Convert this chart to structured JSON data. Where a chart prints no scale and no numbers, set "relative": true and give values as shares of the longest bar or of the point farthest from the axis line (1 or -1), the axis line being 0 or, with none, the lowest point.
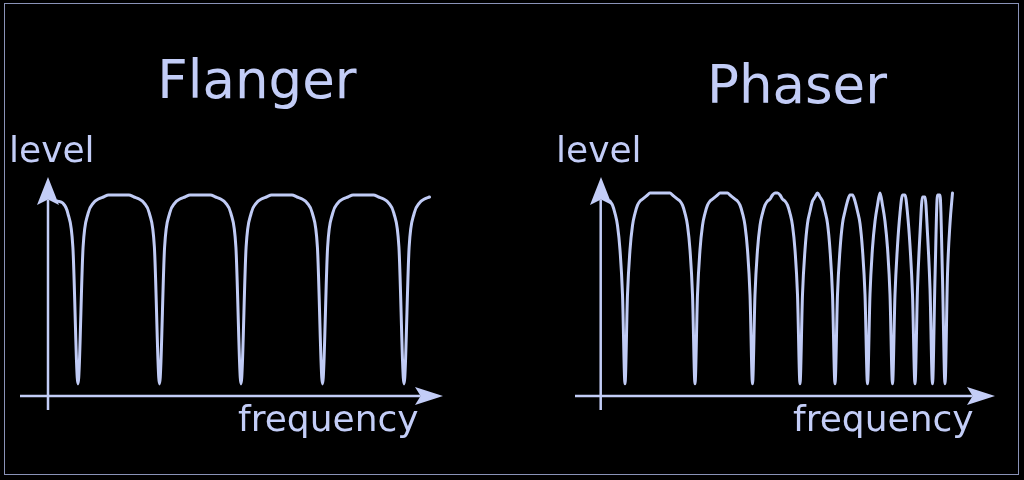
{
  "chart_data": [
    {
      "type": "line",
      "title": "Flanger",
      "xlabel": "frequency",
      "ylabel": "level",
      "relative": true,
      "color": "#c0cbf5",
      "categories": [
        null,
        null,
        null,
        null,
        null,
        null,
        null,
        null,
        null,
        null,
        null,
        null,
        null,
        null,
        null,
        null,
        null,
        null,
        null,
        null,
        null,
        null,
        null,
        null,
        null,
        null,
        null,
        null,
        null,
        null,
        null,
        null,
        null,
        null,
        null,
        null,
        null,
        null,
        null,
        null,
        null,
        null,
        null,
        null,
        null,
        null,
        null,
        null,
        null,
        null,
        null,
        null,
        null,
        null,
        null,
        null,
        null,
        null,
        null,
        null,
        null,
        null,
        null,
        null,
        null,
        null,
        null,
        null,
        null,
        null,
        null,
        null,
        null,
        null
      ],
      "values": [
        0.97,
        0.96,
        0.91,
        0.74,
        0.06,
        0.74,
        0.91,
        0.96,
        0.98,
        0.99,
        1,
        1,
        1,
        1,
        1,
        0.99,
        0.98,
        0.96,
        0.91,
        0.74,
        0.06,
        0.74,
        0.91,
        0.96,
        0.98,
        0.99,
        1,
        1,
        1,
        1,
        1,
        0.99,
        0.98,
        0.96,
        0.91,
        0.74,
        0.06,
        0.74,
        0.91,
        0.96,
        0.98,
        0.99,
        1,
        1,
        1,
        1,
        1,
        0.99,
        0.98,
        0.96,
        0.91,
        0.74,
        0.06,
        0.74,
        0.91,
        0.96,
        0.98,
        0.99,
        1,
        1,
        1,
        1,
        1,
        0.99,
        0.98,
        0.96,
        0.91,
        0.74,
        0.06,
        0.74,
        0.91,
        0.96,
        0.98,
        0.99
      ]
    },
    {
      "type": "line",
      "title": "Phaser",
      "xlabel": "frequency",
      "ylabel": "level",
      "relative": true,
      "color": "#c0cbf5",
      "categories": [
        null,
        null,
        null,
        null,
        null,
        null,
        null,
        null,
        null,
        null,
        null,
        null,
        null,
        null,
        null,
        null,
        null,
        null,
        null,
        null,
        null,
        null,
        null,
        null,
        null,
        null,
        null,
        null,
        null,
        null,
        null,
        null,
        null,
        null,
        null,
        null,
        null,
        null,
        null,
        null,
        null,
        null,
        null,
        null,
        null,
        null,
        null,
        null,
        null,
        null,
        null,
        null,
        null,
        null,
        null,
        null,
        null,
        null,
        null,
        null,
        null,
        null,
        null,
        null,
        null,
        null,
        null,
        null,
        null,
        null,
        null,
        null,
        null,
        null,
        null,
        null,
        null,
        null,
        null,
        null,
        null,
        null,
        null,
        null,
        null,
        null,
        null,
        null,
        null,
        null,
        null,
        null,
        null,
        null,
        null,
        null,
        null,
        null,
        null,
        null,
        null,
        null,
        null,
        null,
        null,
        null,
        null,
        null,
        null,
        null,
        null,
        null,
        null,
        null,
        null,
        null,
        null,
        null,
        null,
        null,
        null,
        null,
        null,
        null,
        null,
        null,
        null,
        null,
        null,
        null,
        null,
        null,
        null,
        null,
        null,
        null,
        null,
        null
      ],
      "values": [
        0.96,
        0.94,
        0.9,
        0.84,
        0.72,
        0.5,
        0.06,
        0.5,
        0.72,
        0.84,
        0.9,
        0.94,
        0.96,
        0.97,
        0.98,
        0.99,
        1,
        1,
        1,
        1,
        1,
        1,
        1,
        1,
        1,
        0.99,
        0.98,
        0.97,
        0.96,
        0.94,
        0.9,
        0.84,
        0.72,
        0.5,
        0.06,
        0.5,
        0.72,
        0.84,
        0.9,
        0.94,
        0.96,
        0.97,
        0.98,
        0.99,
        1,
        1,
        1,
        1,
        0.99,
        0.98,
        0.97,
        0.96,
        0.94,
        0.9,
        0.84,
        0.72,
        0.5,
        0.06,
        0.5,
        0.72,
        0.84,
        0.9,
        0.94,
        0.96,
        0.97,
        0.99,
        1,
        1,
        0.99,
        0.97,
        0.96,
        0.94,
        0.9,
        0.84,
        0.72,
        0.5,
        0.06,
        0.5,
        0.72,
        0.85,
        0.91,
        0.96,
        0.98,
        1,
        0.98,
        0.96,
        0.91,
        0.85,
        0.72,
        0.5,
        0.06,
        0.5,
        0.72,
        0.85,
        0.91,
        0.96,
        0.99,
        0.99,
        0.96,
        0.91,
        0.85,
        0.72,
        0.5,
        0.06,
        0.5,
        0.73,
        0.86,
        0.94,
        1,
        0.94,
        0.86,
        0.73,
        0.5,
        0.06,
        0.5,
        0.74,
        0.9,
        0.99,
        0.99,
        0.9,
        0.74,
        0.5,
        0.06,
        0.53,
        0.8,
        0.98,
        0.98,
        0.8,
        0.53,
        0.06,
        0.58,
        0.99,
        0.99,
        0.58,
        0.06,
        0.6,
        0.85,
        1
      ]
    }
  ]
}
